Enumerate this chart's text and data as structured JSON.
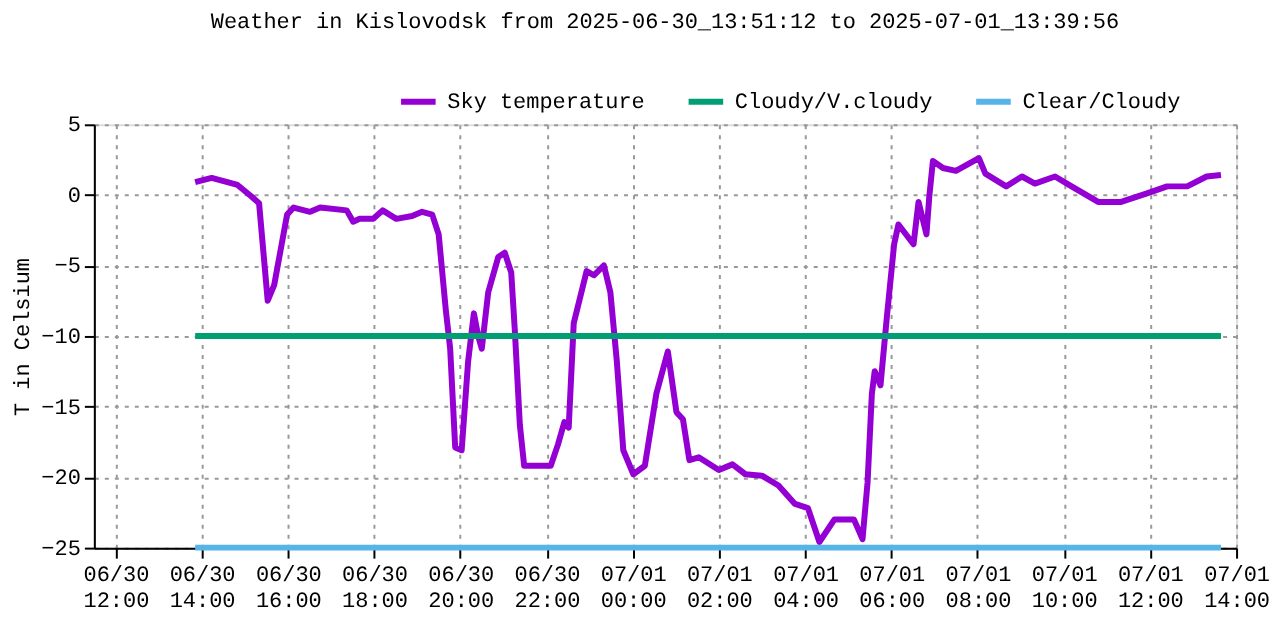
{
  "chart_data": {
    "type": "line",
    "title": "Weather in Kislovodsk from 2025-06-30_13:51:12 to 2025-07-01_13:39:56",
    "ylabel": "T in Celsium",
    "x": [
      "2025-06-30T13:51",
      "2025-06-30T14:14",
      "2025-06-30T14:50",
      "2025-06-30T15:09",
      "2025-06-30T15:20",
      "2025-06-30T15:32",
      "2025-06-30T15:41",
      "2025-06-30T15:59",
      "2025-06-30T16:08",
      "2025-06-30T16:31",
      "2025-06-30T16:45",
      "2025-06-30T17:22",
      "2025-06-30T17:31",
      "2025-06-30T17:40",
      "2025-06-30T17:59",
      "2025-06-30T18:12",
      "2025-06-30T18:31",
      "2025-06-30T18:53",
      "2025-06-30T19:07",
      "2025-06-30T19:21",
      "2025-06-30T19:30",
      "2025-06-30T19:40",
      "2025-06-30T19:46",
      "2025-06-30T19:53",
      "2025-06-30T20:02",
      "2025-06-30T20:11",
      "2025-06-30T20:19",
      "2025-06-30T20:25",
      "2025-06-30T20:30",
      "2025-06-30T20:39",
      "2025-06-30T20:53",
      "2025-06-30T21:02",
      "2025-06-30T21:11",
      "2025-06-30T21:16",
      "2025-06-30T21:23",
      "2025-06-30T21:29",
      "2025-06-30T22:06",
      "2025-06-30T22:16",
      "2025-06-30T22:25",
      "2025-06-30T22:31",
      "2025-06-30T22:38",
      "2025-06-30T22:56",
      "2025-06-30T23:06",
      "2025-06-30T23:20",
      "2025-06-30T23:29",
      "2025-06-30T23:38",
      "2025-06-30T23:47",
      "2025-07-01T00:01",
      "2025-07-01T00:17",
      "2025-07-01T00:33",
      "2025-07-01T00:49",
      "2025-07-01T01:01",
      "2025-07-01T01:10",
      "2025-07-01T01:19",
      "2025-07-01T01:32",
      "2025-07-01T02:00",
      "2025-07-01T02:19",
      "2025-07-01T02:37",
      "2025-07-01T03:00",
      "2025-07-01T03:23",
      "2025-07-01T03:46",
      "2025-07-01T04:04",
      "2025-07-01T04:20",
      "2025-07-01T04:41",
      "2025-07-01T05:08",
      "2025-07-01T05:20",
      "2025-07-01T05:27",
      "2025-07-01T05:33",
      "2025-07-01T05:37",
      "2025-07-01T05:45",
      "2025-07-01T05:54",
      "2025-07-01T06:04",
      "2025-07-01T06:10",
      "2025-07-01T06:31",
      "2025-07-01T06:38",
      "2025-07-01T06:49",
      "2025-07-01T06:53",
      "2025-07-01T06:58",
      "2025-07-01T07:12",
      "2025-07-01T07:30",
      "2025-07-01T08:02",
      "2025-07-01T08:11",
      "2025-07-01T08:40",
      "2025-07-01T09:02",
      "2025-07-01T09:20",
      "2025-07-01T09:48",
      "2025-07-01T10:11",
      "2025-07-01T10:48",
      "2025-07-01T11:20",
      "2025-07-01T11:56",
      "2025-07-01T12:24",
      "2025-07-01T12:52",
      "2025-07-01T13:19",
      "2025-07-01T13:39"
    ],
    "series": [
      {
        "name": "Sky temperature",
        "color": "#9400d3",
        "values": [
          0.9,
          1.2,
          0.7,
          -0.1,
          -0.6,
          -7.5,
          -6.4,
          -1.4,
          -0.9,
          -1.2,
          -0.9,
          -1.1,
          -1.9,
          -1.7,
          -1.7,
          -1.1,
          -1.7,
          -1.5,
          -1.2,
          -1.4,
          -2.8,
          -8.2,
          -10.9,
          -17.9,
          -18.1,
          -11.8,
          -8.4,
          -10.0,
          -10.9,
          -6.9,
          -4.4,
          -4.1,
          -5.5,
          -9.6,
          -16.3,
          -19.2,
          -19.2,
          -17.7,
          -16.1,
          -16.5,
          -9.1,
          -5.4,
          -5.7,
          -5.0,
          -6.9,
          -11.8,
          -18.1,
          -19.8,
          -19.2,
          -14.1,
          -11.1,
          -15.4,
          -15.9,
          -18.8,
          -18.6,
          -19.5,
          -19.1,
          -19.8,
          -19.9,
          -20.6,
          -21.9,
          -22.2,
          -24.6,
          -23.0,
          -23.0,
          -24.4,
          -20.4,
          -14.1,
          -12.5,
          -13.5,
          -8.6,
          -3.5,
          -2.1,
          -3.5,
          -0.5,
          -2.8,
          -0.1,
          2.4,
          1.9,
          1.7,
          2.6,
          1.5,
          0.6,
          1.3,
          0.8,
          1.3,
          0.6,
          -0.5,
          -0.5,
          0.1,
          0.6,
          0.6,
          1.3,
          1.4
        ]
      },
      {
        "name": "Cloudy/V.cloudy",
        "color": "#009e73",
        "x": [
          "2025-06-30T13:51",
          "2025-07-01T13:39"
        ],
        "values": [
          -10,
          -10
        ]
      },
      {
        "name": "Clear/Cloudy",
        "color": "#56b4e9",
        "x": [
          "2025-06-30T13:51",
          "2025-07-01T13:39"
        ],
        "values": [
          -25,
          -25
        ]
      }
    ],
    "xlim": [
      "2025-06-30T11:30",
      "2025-07-01T14:00"
    ],
    "xticks": [
      {
        "value": "2025-06-30T12:00",
        "label": "06/30 12:00"
      },
      {
        "value": "2025-06-30T14:00",
        "label": "06/30 14:00"
      },
      {
        "value": "2025-06-30T16:00",
        "label": "06/30 16:00"
      },
      {
        "value": "2025-06-30T18:00",
        "label": "06/30 18:00"
      },
      {
        "value": "2025-06-30T20:00",
        "label": "06/30 20:00"
      },
      {
        "value": "2025-06-30T22:00",
        "label": "06/30 22:00"
      },
      {
        "value": "2025-07-01T00:00",
        "label": "07/01 00:00"
      },
      {
        "value": "2025-07-01T02:00",
        "label": "07/01 02:00"
      },
      {
        "value": "2025-07-01T04:00",
        "label": "07/01 04:00"
      },
      {
        "value": "2025-07-01T06:00",
        "label": "07/01 06:00"
      },
      {
        "value": "2025-07-01T08:00",
        "label": "07/01 08:00"
      },
      {
        "value": "2025-07-01T10:00",
        "label": "07/01 10:00"
      },
      {
        "value": "2025-07-01T12:00",
        "label": "07/01 12:00"
      },
      {
        "value": "2025-07-01T14:00",
        "label": "07/01 14:00"
      }
    ],
    "ylim": [
      -25,
      5
    ],
    "yticks": [
      -25,
      -20,
      -15,
      -10,
      -5,
      0,
      5
    ],
    "grid": true,
    "legend": "top right",
    "line_style": "solid",
    "marker": "none"
  }
}
